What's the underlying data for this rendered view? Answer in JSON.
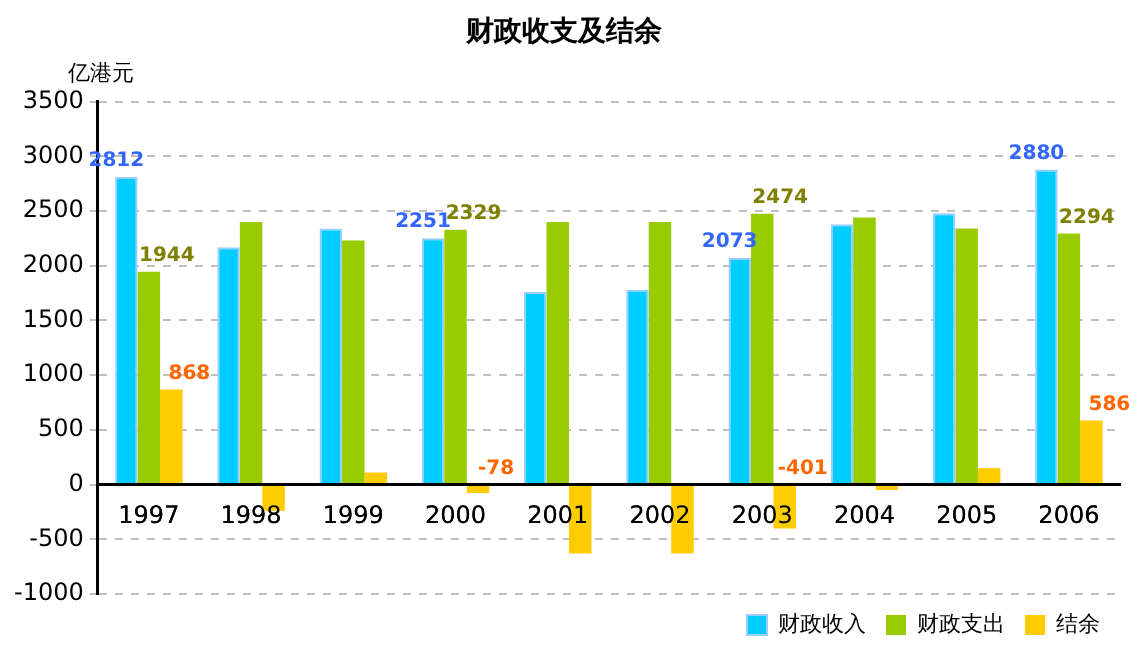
{
  "chart_data": {
    "type": "bar",
    "title": "财政收支及结余",
    "ylabel": "亿港元",
    "categories": [
      "1997",
      "1998",
      "1999",
      "2000",
      "2001",
      "2002",
      "2003",
      "2004",
      "2005",
      "2006"
    ],
    "series": [
      {
        "name": "财政收入",
        "color": "#00ccff",
        "values": [
          2812,
          2170,
          2340,
          2251,
          1760,
          1780,
          2073,
          2380,
          2480,
          2880
        ],
        "value_labels": [
          "2812",
          null,
          null,
          "2251",
          null,
          null,
          "2073",
          null,
          null,
          "2880"
        ]
      },
      {
        "name": "财政支出",
        "color": "#99cc00",
        "values": [
          1944,
          2400,
          2230,
          2329,
          2400,
          2400,
          2474,
          2440,
          2340,
          2294
        ],
        "value_labels": [
          "1944",
          null,
          null,
          "2329",
          null,
          null,
          "2474",
          null,
          null,
          "2294"
        ]
      },
      {
        "name": "结余",
        "color": "#ffcc00",
        "values": [
          868,
          -240,
          110,
          -78,
          -630,
          -630,
          -401,
          -50,
          150,
          586
        ],
        "value_labels": [
          "868",
          null,
          null,
          "-78",
          null,
          null,
          "-401",
          null,
          null,
          "586"
        ]
      }
    ],
    "ylim": [
      -1000,
      3500
    ],
    "yticks": [
      -1000,
      -500,
      0,
      500,
      1000,
      1500,
      2000,
      2500,
      3000,
      3500
    ],
    "grid": "y",
    "legend": "bottom"
  }
}
